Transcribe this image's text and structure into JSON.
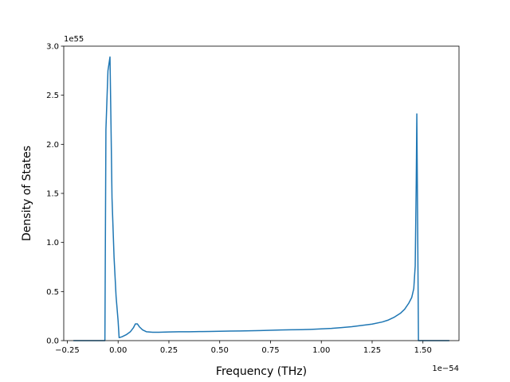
{
  "chart_data": {
    "type": "line",
    "title": "",
    "xlabel": "Frequency (THz)",
    "ylabel": "Density of States",
    "x_offset_text": "1e−54",
    "y_offset_text": "1e55",
    "xlim": [
      -0.2675,
      1.6775
    ],
    "ylim": [
      0,
      3.0
    ],
    "x_ticks": [
      -0.25,
      0.0,
      0.25,
      0.5,
      0.75,
      1.0,
      1.25,
      1.5
    ],
    "x_tick_labels": [
      "−0.25",
      "0.00",
      "0.25",
      "0.50",
      "0.75",
      "1.00",
      "1.25",
      "1.50"
    ],
    "y_ticks": [
      0.0,
      0.5,
      1.0,
      1.5,
      2.0,
      2.5,
      3.0
    ],
    "y_tick_labels": [
      "0.0",
      "0.5",
      "1.0",
      "1.5",
      "2.0",
      "2.5",
      "3.0"
    ],
    "grid": false,
    "line_color": "#1f77b4",
    "series": [
      {
        "values": [
          [
            -0.22,
            0.0
          ],
          [
            -0.07,
            0.0
          ],
          [
            -0.065,
            0.0
          ],
          [
            -0.06,
            2.15
          ],
          [
            -0.05,
            2.75
          ],
          [
            -0.04,
            2.89
          ],
          [
            -0.035,
            2.2
          ],
          [
            -0.03,
            1.45
          ],
          [
            -0.02,
            0.85
          ],
          [
            -0.01,
            0.45
          ],
          [
            0.0,
            0.2
          ],
          [
            0.005,
            0.03
          ],
          [
            0.02,
            0.04
          ],
          [
            0.04,
            0.06
          ],
          [
            0.06,
            0.09
          ],
          [
            0.075,
            0.13
          ],
          [
            0.085,
            0.17
          ],
          [
            0.095,
            0.17
          ],
          [
            0.105,
            0.14
          ],
          [
            0.12,
            0.11
          ],
          [
            0.14,
            0.09
          ],
          [
            0.17,
            0.085
          ],
          [
            0.2,
            0.085
          ],
          [
            0.25,
            0.088
          ],
          [
            0.3,
            0.09
          ],
          [
            0.35,
            0.09
          ],
          [
            0.4,
            0.092
          ],
          [
            0.45,
            0.093
          ],
          [
            0.5,
            0.095
          ],
          [
            0.55,
            0.097
          ],
          [
            0.6,
            0.098
          ],
          [
            0.65,
            0.1
          ],
          [
            0.7,
            0.102
          ],
          [
            0.75,
            0.105
          ],
          [
            0.8,
            0.108
          ],
          [
            0.85,
            0.11
          ],
          [
            0.9,
            0.112
          ],
          [
            0.95,
            0.115
          ],
          [
            1.0,
            0.12
          ],
          [
            1.05,
            0.125
          ],
          [
            1.1,
            0.133
          ],
          [
            1.15,
            0.142
          ],
          [
            1.2,
            0.155
          ],
          [
            1.25,
            0.168
          ],
          [
            1.3,
            0.19
          ],
          [
            1.33,
            0.21
          ],
          [
            1.36,
            0.24
          ],
          [
            1.39,
            0.28
          ],
          [
            1.41,
            0.32
          ],
          [
            1.43,
            0.38
          ],
          [
            1.445,
            0.44
          ],
          [
            1.455,
            0.53
          ],
          [
            1.462,
            0.76
          ],
          [
            1.467,
            1.6
          ],
          [
            1.47,
            2.31
          ],
          [
            1.474,
            1.2
          ],
          [
            1.478,
            0.0
          ],
          [
            1.63,
            0.0
          ]
        ]
      }
    ]
  }
}
